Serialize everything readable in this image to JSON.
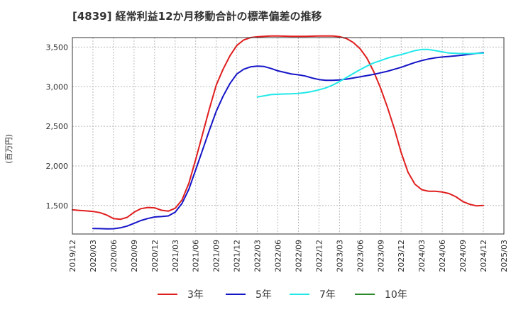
{
  "chart_data": {
    "type": "line",
    "title": "[4839]  経常利益12か月移動合計の標準偏差の推移",
    "ylabel": "(百万円)",
    "xlabel": "",
    "ylim": [
      1140,
      3620
    ],
    "xlim": [
      "2019-12",
      "2025-03"
    ],
    "yticks": [
      "1,500",
      "2,000",
      "2,500",
      "3,000",
      "3,500"
    ],
    "xticks": [
      "2019/12",
      "2020/03",
      "2020/06",
      "2020/09",
      "2020/12",
      "2021/03",
      "2021/06",
      "2021/09",
      "2021/12",
      "2022/03",
      "2022/06",
      "2022/09",
      "2022/12",
      "2023/03",
      "2023/06",
      "2023/09",
      "2023/12",
      "2024/03",
      "2024/06",
      "2024/09",
      "2024/12",
      "2025/03"
    ],
    "grid": true,
    "legend_position": "bottom",
    "series": [
      {
        "name": "3年",
        "color": "#e01e1e",
        "x": [
          "2019-12",
          "2020-01",
          "2020-02",
          "2020-03",
          "2020-04",
          "2020-05",
          "2020-06",
          "2020-07",
          "2020-08",
          "2020-09",
          "2020-10",
          "2020-11",
          "2020-12",
          "2021-01",
          "2021-02",
          "2021-03",
          "2021-04",
          "2021-05",
          "2021-06",
          "2021-07",
          "2021-08",
          "2021-09",
          "2021-10",
          "2021-11",
          "2021-12",
          "2022-01",
          "2022-02",
          "2022-03",
          "2022-04",
          "2022-05",
          "2022-06",
          "2022-07",
          "2022-08",
          "2022-09",
          "2022-10",
          "2022-11",
          "2022-12",
          "2023-01",
          "2023-02",
          "2023-03",
          "2023-04",
          "2023-05",
          "2023-06",
          "2023-07",
          "2023-08",
          "2023-09",
          "2023-10",
          "2023-11",
          "2023-12",
          "2024-01",
          "2024-02",
          "2024-03",
          "2024-04",
          "2024-05",
          "2024-06",
          "2024-07",
          "2024-08",
          "2024-09",
          "2024-10",
          "2024-11",
          "2024-12"
        ],
        "values": [
          1445,
          1438,
          1432,
          1425,
          1410,
          1380,
          1335,
          1325,
          1350,
          1415,
          1460,
          1475,
          1470,
          1440,
          1428,
          1465,
          1570,
          1780,
          2080,
          2400,
          2720,
          3020,
          3220,
          3390,
          3520,
          3590,
          3620,
          3630,
          3635,
          3640,
          3640,
          3638,
          3636,
          3635,
          3635,
          3638,
          3640,
          3641,
          3640,
          3632,
          3608,
          3558,
          3480,
          3360,
          3190,
          2980,
          2740,
          2470,
          2170,
          1920,
          1770,
          1700,
          1680,
          1680,
          1670,
          1650,
          1610,
          1550,
          1515,
          1495,
          1500
        ]
      },
      {
        "name": "5年",
        "color": "#1515c8",
        "x": [
          "2020-03",
          "2020-04",
          "2020-05",
          "2020-06",
          "2020-07",
          "2020-08",
          "2020-09",
          "2020-10",
          "2020-11",
          "2020-12",
          "2021-01",
          "2021-02",
          "2021-03",
          "2021-04",
          "2021-05",
          "2021-06",
          "2021-07",
          "2021-08",
          "2021-09",
          "2021-10",
          "2021-11",
          "2021-12",
          "2022-01",
          "2022-02",
          "2022-03",
          "2022-04",
          "2022-05",
          "2022-06",
          "2022-07",
          "2022-08",
          "2022-09",
          "2022-10",
          "2022-11",
          "2022-12",
          "2023-01",
          "2023-02",
          "2023-03",
          "2023-04",
          "2023-05",
          "2023-06",
          "2023-07",
          "2023-08",
          "2023-09",
          "2023-10",
          "2023-11",
          "2023-12",
          "2024-01",
          "2024-02",
          "2024-03",
          "2024-04",
          "2024-05",
          "2024-06",
          "2024-07",
          "2024-08",
          "2024-09",
          "2024-10",
          "2024-11",
          "2024-12"
        ],
        "values": [
          1210,
          1208,
          1205,
          1206,
          1218,
          1240,
          1275,
          1310,
          1335,
          1355,
          1360,
          1368,
          1415,
          1525,
          1705,
          1950,
          2200,
          2450,
          2690,
          2880,
          3040,
          3160,
          3220,
          3250,
          3260,
          3255,
          3230,
          3200,
          3180,
          3160,
          3150,
          3135,
          3110,
          3090,
          3080,
          3080,
          3085,
          3095,
          3110,
          3125,
          3140,
          3155,
          3175,
          3195,
          3220,
          3245,
          3275,
          3305,
          3330,
          3350,
          3365,
          3375,
          3382,
          3390,
          3398,
          3410,
          3420,
          3430
        ]
      },
      {
        "name": "7年",
        "color": "#22e8e8",
        "x": [
          "2022-03",
          "2022-04",
          "2022-05",
          "2022-06",
          "2022-07",
          "2022-08",
          "2022-09",
          "2022-10",
          "2022-11",
          "2022-12",
          "2023-01",
          "2023-02",
          "2023-03",
          "2023-04",
          "2023-05",
          "2023-06",
          "2023-07",
          "2023-08",
          "2023-09",
          "2023-10",
          "2023-11",
          "2023-12",
          "2024-01",
          "2024-02",
          "2024-03",
          "2024-04",
          "2024-05",
          "2024-06",
          "2024-07",
          "2024-08",
          "2024-09",
          "2024-10",
          "2024-11",
          "2024-12"
        ],
        "values": [
          2870,
          2885,
          2900,
          2905,
          2908,
          2910,
          2915,
          2925,
          2940,
          2960,
          2985,
          3020,
          3065,
          3115,
          3165,
          3215,
          3260,
          3300,
          3330,
          3360,
          3385,
          3405,
          3430,
          3455,
          3470,
          3470,
          3455,
          3440,
          3425,
          3420,
          3418,
          3418,
          3420,
          3422
        ]
      },
      {
        "name": "10年",
        "color": "#2a8a2a",
        "x": [],
        "values": []
      }
    ]
  }
}
